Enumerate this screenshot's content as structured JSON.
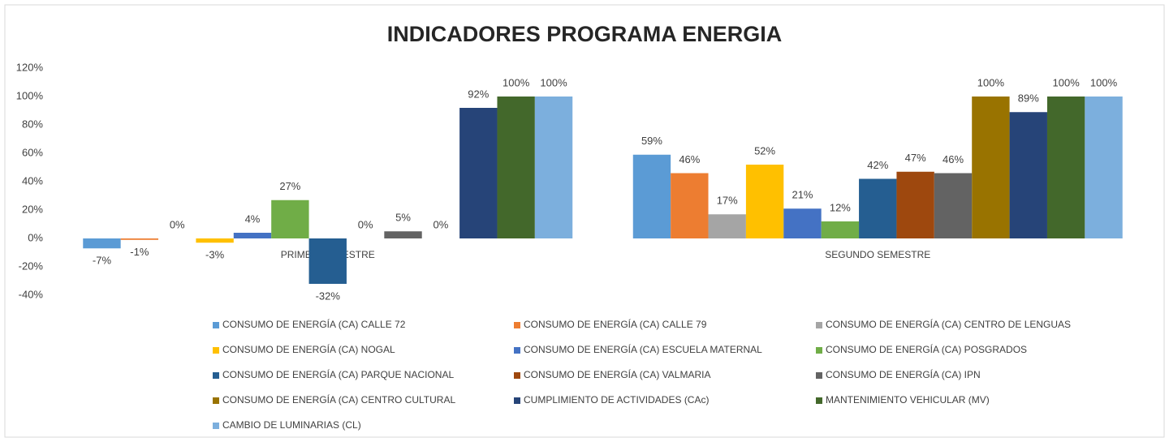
{
  "chart_data": {
    "type": "bar",
    "title": "INDICADORES PROGRAMA ENERGIA",
    "categories": [
      "PRIMER SEMESTRE",
      "SEGUNDO SEMESTRE"
    ],
    "ylim": [
      -40,
      120
    ],
    "yticks": [
      {
        "value": -40,
        "label": "-40%"
      },
      {
        "value": -20,
        "label": "-20%"
      },
      {
        "value": 0,
        "label": "0%"
      },
      {
        "value": 20,
        "label": "20%"
      },
      {
        "value": 40,
        "label": "40%"
      },
      {
        "value": 60,
        "label": "60%"
      },
      {
        "value": 80,
        "label": "80%"
      },
      {
        "value": 100,
        "label": "100%"
      },
      {
        "value": 120,
        "label": "120%"
      }
    ],
    "grid": false,
    "legend": "bottom",
    "series": [
      {
        "name": "CONSUMO DE ENERGÍA (CA) CALLE 72",
        "color": "#5b9bd5",
        "values": [
          -7,
          59
        ],
        "value_labels": [
          "-7%",
          "59%"
        ]
      },
      {
        "name": "CONSUMO DE ENERGÍA (CA) CALLE 79",
        "color": "#ed7d31",
        "values": [
          -1,
          46
        ],
        "value_labels": [
          "-1%",
          "46%"
        ]
      },
      {
        "name": "CONSUMO DE ENERGÍA (CA) CENTRO DE LENGUAS",
        "color": "#a5a5a5",
        "values": [
          0,
          17
        ],
        "value_labels": [
          "0%",
          "17%"
        ]
      },
      {
        "name": "CONSUMO DE ENERGÍA (CA) NOGAL",
        "color": "#ffc000",
        "values": [
          -3,
          52
        ],
        "value_labels": [
          "-3%",
          "52%"
        ]
      },
      {
        "name": "CONSUMO DE ENERGÍA (CA) ESCUELA MATERNAL",
        "color": "#4472c4",
        "values": [
          4,
          21
        ],
        "value_labels": [
          "4%",
          "21%"
        ]
      },
      {
        "name": "CONSUMO DE ENERGÍA (CA) POSGRADOS",
        "color": "#70ad47",
        "values": [
          27,
          12
        ],
        "value_labels": [
          "27%",
          "12%"
        ]
      },
      {
        "name": "CONSUMO DE ENERGÍA (CA) PARQUE NACIONAL",
        "color": "#255e91",
        "values": [
          -32,
          42
        ],
        "value_labels": [
          "-32%",
          "42%"
        ]
      },
      {
        "name": "CONSUMO DE ENERGÍA (CA) VALMARIA",
        "color": "#9e480e",
        "values": [
          0,
          47
        ],
        "value_labels": [
          "0%",
          "47%"
        ]
      },
      {
        "name": "CONSUMO DE ENERGÍA (CA) IPN",
        "color": "#636363",
        "values": [
          5,
          46
        ],
        "value_labels": [
          "5%",
          "46%"
        ]
      },
      {
        "name": "CONSUMO DE ENERGÍA (CA) CENTRO CULTURAL",
        "color": "#997300",
        "values": [
          0,
          100
        ],
        "value_labels": [
          "0%",
          "100%"
        ]
      },
      {
        "name": "CUMPLIMIENTO DE ACTIVIDADES (CAc)",
        "color": "#264478",
        "values": [
          92,
          89
        ],
        "value_labels": [
          "92%",
          "89%"
        ]
      },
      {
        "name": "MANTENIMIENTO VEHICULAR (MV)",
        "color": "#43682b",
        "values": [
          100,
          100
        ],
        "value_labels": [
          "100%",
          "100%"
        ]
      },
      {
        "name": "CAMBIO DE LUMINARIAS (CL)",
        "color": "#7cafdd",
        "values": [
          100,
          100
        ],
        "value_labels": [
          "100%",
          "100%"
        ]
      }
    ]
  }
}
